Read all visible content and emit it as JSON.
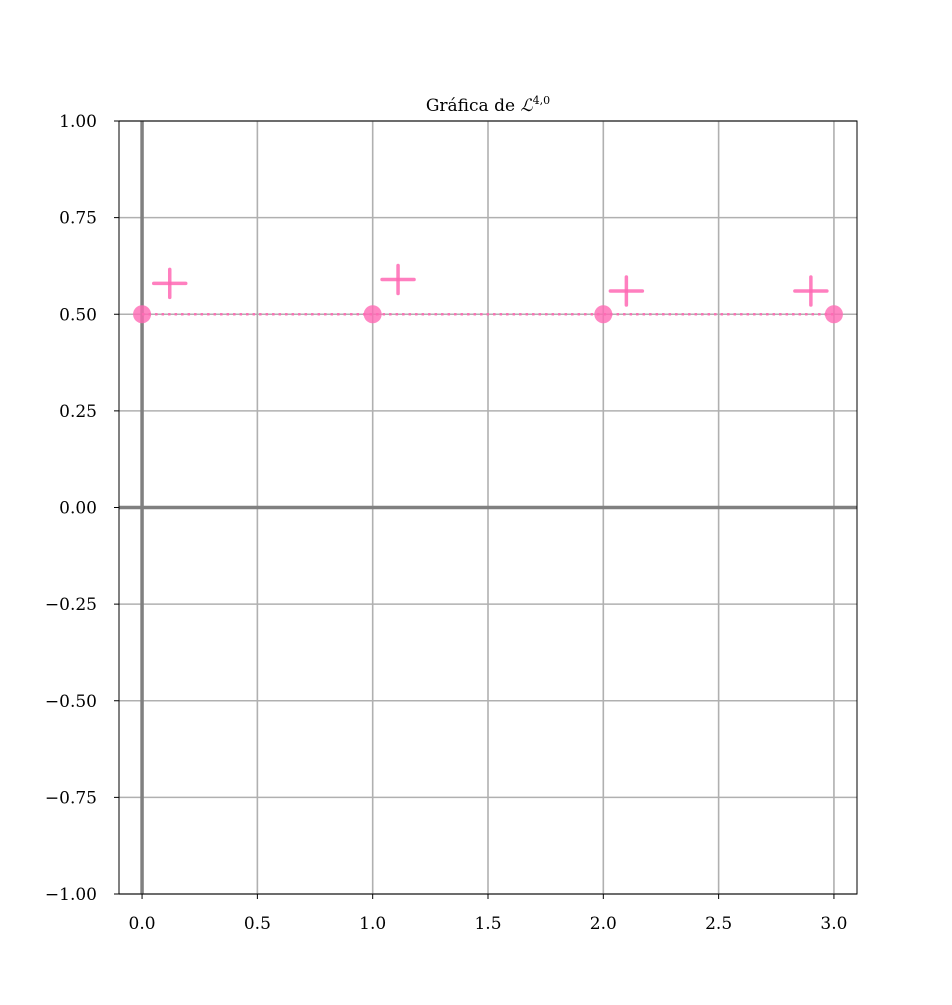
{
  "chart_data": {
    "type": "scatter",
    "title": "Gráfica de ",
    "title_math": "ℒ",
    "title_sup": "4,0",
    "xlabel": "",
    "ylabel": "",
    "xlim": [
      -0.1,
      3.1
    ],
    "ylim": [
      -1.0,
      1.0
    ],
    "x_ticks": [
      0.0,
      0.5,
      1.0,
      1.5,
      2.0,
      2.5,
      3.0
    ],
    "x_tick_labels": [
      "0.0",
      "0.5",
      "1.0",
      "1.5",
      "2.0",
      "2.5",
      "3.0"
    ],
    "y_ticks": [
      -1.0,
      -0.75,
      -0.5,
      -0.25,
      0.0,
      0.25,
      0.5,
      0.75,
      1.0
    ],
    "y_tick_labels": [
      "−1.00",
      "−0.75",
      "−0.50",
      "−0.25",
      "0.00",
      "0.25",
      "0.50",
      "0.75",
      "1.00"
    ],
    "grid": true,
    "series": [
      {
        "marker": "circle",
        "line": "dotted",
        "color": "#ff69b4",
        "x": [
          0,
          1,
          2,
          3
        ],
        "y": [
          0.5,
          0.5,
          0.5,
          0.5
        ]
      }
    ],
    "annotations": [
      {
        "marker": "plus",
        "x": 0.12,
        "y": 0.58,
        "color": "#ff69b4"
      },
      {
        "marker": "plus",
        "x": 1.11,
        "y": 0.59,
        "color": "#ff69b4"
      },
      {
        "marker": "plus",
        "x": 2.1,
        "y": 0.56,
        "color": "#ff69b4"
      },
      {
        "marker": "plus",
        "x": 2.9,
        "y": 0.56,
        "color": "#ff69b4"
      }
    ],
    "colors": {
      "axis_line": "#808080",
      "grid": "#b0b0b0",
      "frame": "#000000"
    }
  }
}
